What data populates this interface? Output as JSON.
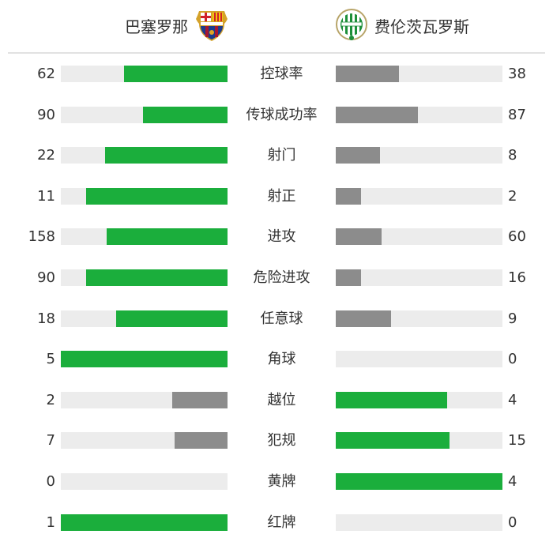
{
  "header": {
    "home_team": "巴塞罗那",
    "away_team": "费伦茨瓦罗斯",
    "home_logo_icon": "fc-barcelona-crest-icon",
    "away_logo_icon": "ferencvaros-crest-icon"
  },
  "colors": {
    "leading": "#1bae3c",
    "trailing": "#8c8c8c",
    "track": "#ececec"
  },
  "stats": [
    {
      "label": "控球率",
      "home": "62",
      "away": "38"
    },
    {
      "label": "传球成功率",
      "home": "90",
      "away": "87"
    },
    {
      "label": "射门",
      "home": "22",
      "away": "8"
    },
    {
      "label": "射正",
      "home": "11",
      "away": "2"
    },
    {
      "label": "进攻",
      "home": "158",
      "away": "60"
    },
    {
      "label": "危险进攻",
      "home": "90",
      "away": "16"
    },
    {
      "label": "任意球",
      "home": "18",
      "away": "9"
    },
    {
      "label": "角球",
      "home": "5",
      "away": "0"
    },
    {
      "label": "越位",
      "home": "2",
      "away": "4"
    },
    {
      "label": "犯规",
      "home": "7",
      "away": "15"
    },
    {
      "label": "黄牌",
      "home": "0",
      "away": "4"
    },
    {
      "label": "红牌",
      "home": "1",
      "away": "0"
    }
  ]
}
